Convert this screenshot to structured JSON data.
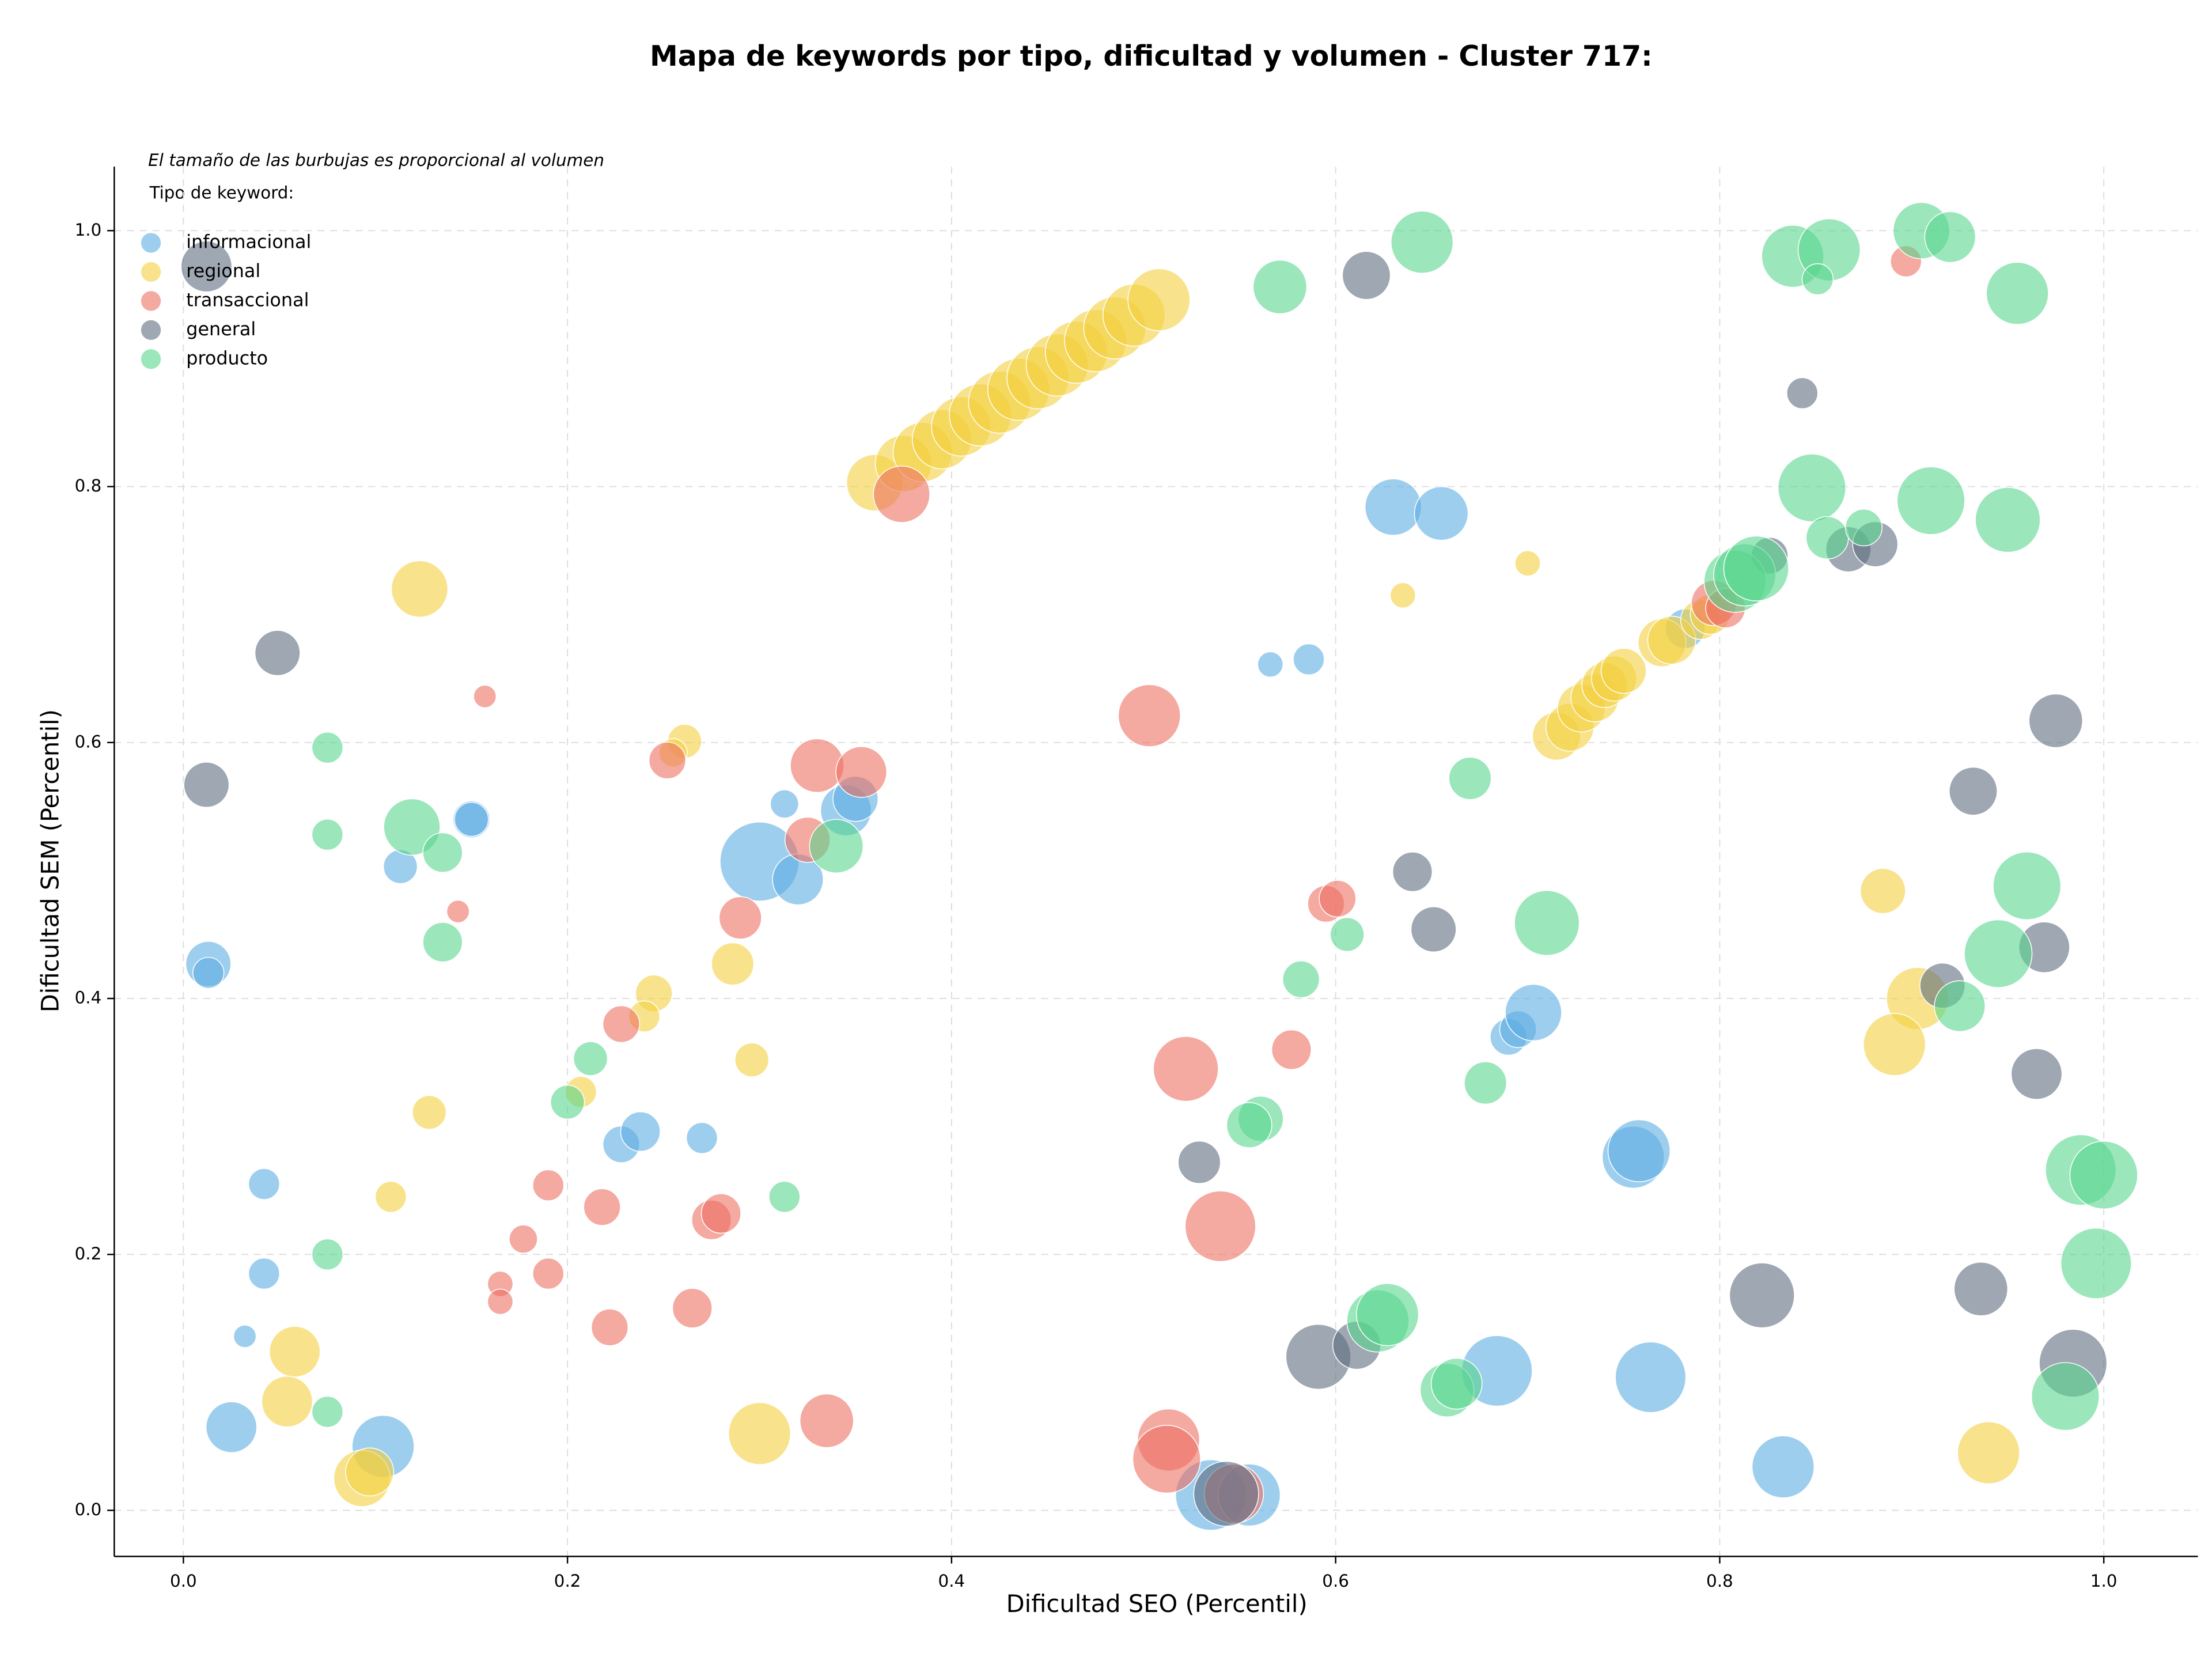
{
  "chart_data": {
    "type": "scatter",
    "title": "Mapa de keywords por tipo, dificultad y volumen - Cluster 717:",
    "annotation": "El tamaño de las burbujas es proporcional al volumen",
    "legend_title": "Tipo de keyword:",
    "xlabel": "Dificultad SEO (Percentil)",
    "ylabel": "Dificultad SEM (Percentil)",
    "xlim": [
      -0.036,
      1.049
    ],
    "ylim": [
      -0.036,
      1.05
    ],
    "xticks": [
      {
        "value": 0,
        "label": "0.0"
      },
      0.2,
      0.4,
      0.6,
      0.8,
      {
        "value": 1,
        "label": "1.0"
      }
    ],
    "yticks": [
      {
        "value": 0,
        "label": "0.0"
      },
      0.2,
      0.4,
      0.6,
      0.8,
      {
        "value": 1,
        "label": "1.0"
      }
    ],
    "grid": true,
    "legend": "upper left",
    "series": [
      {
        "name": "informacional",
        "color": "#5dade2",
        "x": [
          0.013,
          0.013,
          0.042,
          0.042,
          0.032,
          0.025,
          0.104,
          0.113,
          0.15,
          0.15,
          0.228,
          0.238,
          0.27,
          0.3,
          0.32,
          0.313,
          0.345,
          0.35,
          0.535,
          0.555,
          0.566,
          0.586,
          0.63,
          0.655,
          0.69,
          0.695,
          0.703,
          0.755,
          0.758,
          0.764,
          0.684,
          0.782,
          0.833
        ],
        "y": [
          0.427,
          0.42,
          0.255,
          0.185,
          0.136,
          0.065,
          0.05,
          0.503,
          0.54,
          0.54,
          0.286,
          0.296,
          0.291,
          0.507,
          0.493,
          0.552,
          0.547,
          0.556,
          0.012,
          0.012,
          0.661,
          0.665,
          0.784,
          0.779,
          0.37,
          0.376,
          0.389,
          0.276,
          0.281,
          0.104,
          0.109,
          0.689,
          0.034
        ],
        "size": [
          16,
          11,
          11,
          11,
          8,
          18,
          22,
          12,
          13,
          12,
          13,
          14,
          11,
          28,
          18,
          10,
          18,
          16,
          25,
          22,
          9,
          11,
          20,
          19,
          13,
          13,
          20,
          22,
          22,
          25,
          25,
          14,
          22
        ]
      },
      {
        "name": "regional",
        "color": "#f4d03f",
        "x": [
          0.36,
          0.375,
          0.385,
          0.395,
          0.405,
          0.415,
          0.425,
          0.435,
          0.445,
          0.455,
          0.465,
          0.475,
          0.485,
          0.495,
          0.508,
          0.715,
          0.722,
          0.728,
          0.735,
          0.74,
          0.745,
          0.75,
          0.77,
          0.775,
          0.79,
          0.795,
          0.123,
          0.261,
          0.255,
          0.245,
          0.24,
          0.286,
          0.296,
          0.207,
          0.128,
          0.108,
          0.058,
          0.054,
          0.093,
          0.097,
          0.3,
          0.635,
          0.7,
          0.885,
          0.903,
          0.891,
          0.94
        ],
        "y": [
          0.803,
          0.818,
          0.827,
          0.837,
          0.847,
          0.856,
          0.866,
          0.876,
          0.885,
          0.895,
          0.905,
          0.914,
          0.924,
          0.934,
          0.946,
          0.605,
          0.612,
          0.627,
          0.635,
          0.645,
          0.65,
          0.656,
          0.678,
          0.68,
          0.696,
          0.7,
          0.72,
          0.601,
          0.592,
          0.404,
          0.386,
          0.427,
          0.352,
          0.327,
          0.311,
          0.245,
          0.124,
          0.085,
          0.025,
          0.03,
          0.06,
          0.715,
          0.74,
          0.484,
          0.4,
          0.364,
          0.045
        ],
        "size": [
          20,
          20,
          21,
          21,
          21,
          22,
          22,
          22,
          22,
          22,
          22,
          22,
          22,
          22,
          22,
          17,
          17,
          17,
          17,
          16,
          16,
          16,
          17,
          17,
          14,
          14,
          20,
          12,
          10,
          13,
          11,
          15,
          12,
          11,
          12,
          11,
          18,
          18,
          20,
          17,
          22,
          9,
          9,
          16,
          22,
          22,
          22
        ]
      },
      {
        "name": "transaccional",
        "color": "#ec7063",
        "x": [
          0.157,
          0.143,
          0.177,
          0.165,
          0.165,
          0.19,
          0.19,
          0.218,
          0.222,
          0.228,
          0.252,
          0.275,
          0.28,
          0.29,
          0.265,
          0.33,
          0.325,
          0.353,
          0.335,
          0.374,
          0.503,
          0.522,
          0.54,
          0.513,
          0.512,
          0.547,
          0.577,
          0.595,
          0.601,
          0.797,
          0.803,
          0.897
        ],
        "y": [
          0.636,
          0.468,
          0.212,
          0.177,
          0.163,
          0.254,
          0.185,
          0.237,
          0.143,
          0.38,
          0.586,
          0.227,
          0.232,
          0.463,
          0.158,
          0.582,
          0.524,
          0.577,
          0.07,
          0.794,
          0.621,
          0.345,
          0.222,
          0.055,
          0.04,
          0.013,
          0.36,
          0.474,
          0.478,
          0.709,
          0.705,
          0.976
        ],
        "size": [
          8,
          8,
          10,
          9,
          9,
          11,
          11,
          13,
          13,
          13,
          13,
          14,
          14,
          15,
          14,
          19,
          16,
          18,
          19,
          20,
          22,
          23,
          25,
          22,
          24,
          21,
          14,
          13,
          13,
          16,
          14,
          11
        ]
      },
      {
        "name": "general",
        "color": "#5d6d7e",
        "x": [
          0.012,
          0.049,
          0.012,
          0.529,
          0.543,
          0.591,
          0.611,
          0.616,
          0.64,
          0.651,
          0.822,
          0.843,
          0.826,
          0.867,
          0.881,
          0.916,
          0.932,
          0.936,
          0.965,
          0.969,
          0.975,
          0.984
        ],
        "y": [
          0.972,
          0.67,
          0.567,
          0.272,
          0.013,
          0.12,
          0.129,
          0.965,
          0.499,
          0.454,
          0.168,
          0.873,
          0.746,
          0.751,
          0.755,
          0.41,
          0.562,
          0.173,
          0.341,
          0.44,
          0.617,
          0.115
        ],
        "size": [
          18,
          16,
          16,
          15,
          23,
          23,
          17,
          17,
          14,
          16,
          23,
          11,
          13,
          16,
          16,
          16,
          17,
          19,
          18,
          18,
          19,
          24
        ]
      },
      {
        "name": "producto",
        "color": "#58d68d",
        "x": [
          0.075,
          0.075,
          0.075,
          0.075,
          0.119,
          0.135,
          0.135,
          0.212,
          0.2,
          0.313,
          0.34,
          0.571,
          0.645,
          0.67,
          0.582,
          0.606,
          0.561,
          0.555,
          0.622,
          0.627,
          0.658,
          0.663,
          0.678,
          0.71,
          0.808,
          0.813,
          0.819,
          0.848,
          0.838,
          0.857,
          0.851,
          0.856,
          0.875,
          0.905,
          0.92,
          0.91,
          0.955,
          0.95,
          0.945,
          0.96,
          0.925,
          0.98,
          0.988,
          1.0,
          0.996
        ],
        "y": [
          0.596,
          0.528,
          0.2,
          0.077,
          0.534,
          0.514,
          0.444,
          0.353,
          0.319,
          0.245,
          0.519,
          0.956,
          0.991,
          0.572,
          0.415,
          0.45,
          0.306,
          0.301,
          0.148,
          0.153,
          0.094,
          0.099,
          0.334,
          0.459,
          0.726,
          0.731,
          0.736,
          0.799,
          0.98,
          0.985,
          0.962,
          0.76,
          0.768,
          1.0,
          0.995,
          0.789,
          0.951,
          0.774,
          0.435,
          0.488,
          0.394,
          0.089,
          0.266,
          0.262,
          0.193
        ],
        "size": [
          11,
          11,
          11,
          11,
          20,
          14,
          14,
          12,
          12,
          11,
          19,
          19,
          22,
          15,
          13,
          12,
          16,
          16,
          22,
          22,
          19,
          18,
          15,
          23,
          22,
          22,
          23,
          24,
          22,
          22,
          11,
          15,
          13,
          20,
          18,
          24,
          22,
          23,
          24,
          24,
          18,
          24,
          25,
          24,
          25
        ]
      }
    ]
  }
}
